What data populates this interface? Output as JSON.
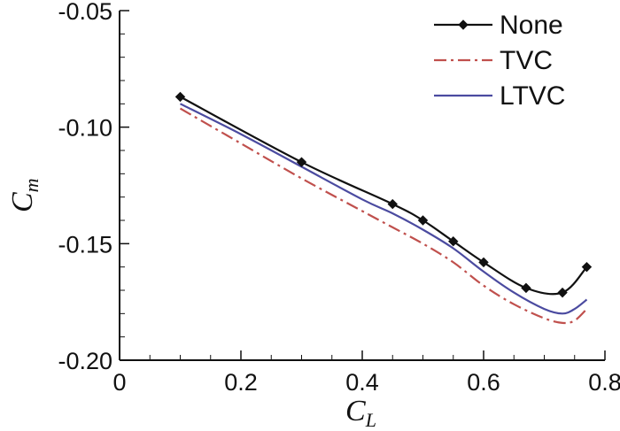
{
  "chart_data": {
    "type": "line",
    "xlabel": {
      "base": "C",
      "sub": "L"
    },
    "ylabel": {
      "base": "C",
      "sub": "m"
    },
    "xlim": [
      0,
      0.8
    ],
    "ylim": [
      -0.2,
      -0.05
    ],
    "xticks": [
      0,
      0.2,
      0.4,
      0.6,
      0.8
    ],
    "xtick_labels": [
      "0",
      "0.2",
      "0.4",
      "0.6",
      "0.8"
    ],
    "yticks": [
      -0.2,
      -0.15,
      -0.1,
      -0.05
    ],
    "ytick_labels": [
      "-0.20",
      "-0.15",
      "-0.10",
      "-0.05"
    ],
    "grid": false,
    "legend_position": "top-right",
    "series": [
      {
        "name": "None",
        "color": "#111111",
        "style": "solid-diamond",
        "x": [
          0.1,
          0.3,
          0.45,
          0.5,
          0.55,
          0.6,
          0.67,
          0.73,
          0.77
        ],
        "y": [
          -0.087,
          -0.115,
          -0.133,
          -0.14,
          -0.149,
          -0.158,
          -0.169,
          -0.171,
          -0.16
        ]
      },
      {
        "name": "TVC",
        "color": "#c0504d",
        "style": "dashdot",
        "x": [
          0.1,
          0.2,
          0.3,
          0.4,
          0.45,
          0.5,
          0.55,
          0.6,
          0.65,
          0.7,
          0.73,
          0.75,
          0.77
        ],
        "y": [
          -0.092,
          -0.107,
          -0.122,
          -0.136,
          -0.143,
          -0.15,
          -0.158,
          -0.168,
          -0.176,
          -0.182,
          -0.184,
          -0.183,
          -0.178
        ]
      },
      {
        "name": "LTVC",
        "color": "#4b4ba0",
        "style": "solid",
        "x": [
          0.1,
          0.2,
          0.3,
          0.4,
          0.45,
          0.5,
          0.55,
          0.6,
          0.65,
          0.7,
          0.73,
          0.75,
          0.77
        ],
        "y": [
          -0.09,
          -0.103,
          -0.117,
          -0.131,
          -0.137,
          -0.144,
          -0.152,
          -0.162,
          -0.171,
          -0.178,
          -0.18,
          -0.178,
          -0.174
        ]
      }
    ]
  }
}
